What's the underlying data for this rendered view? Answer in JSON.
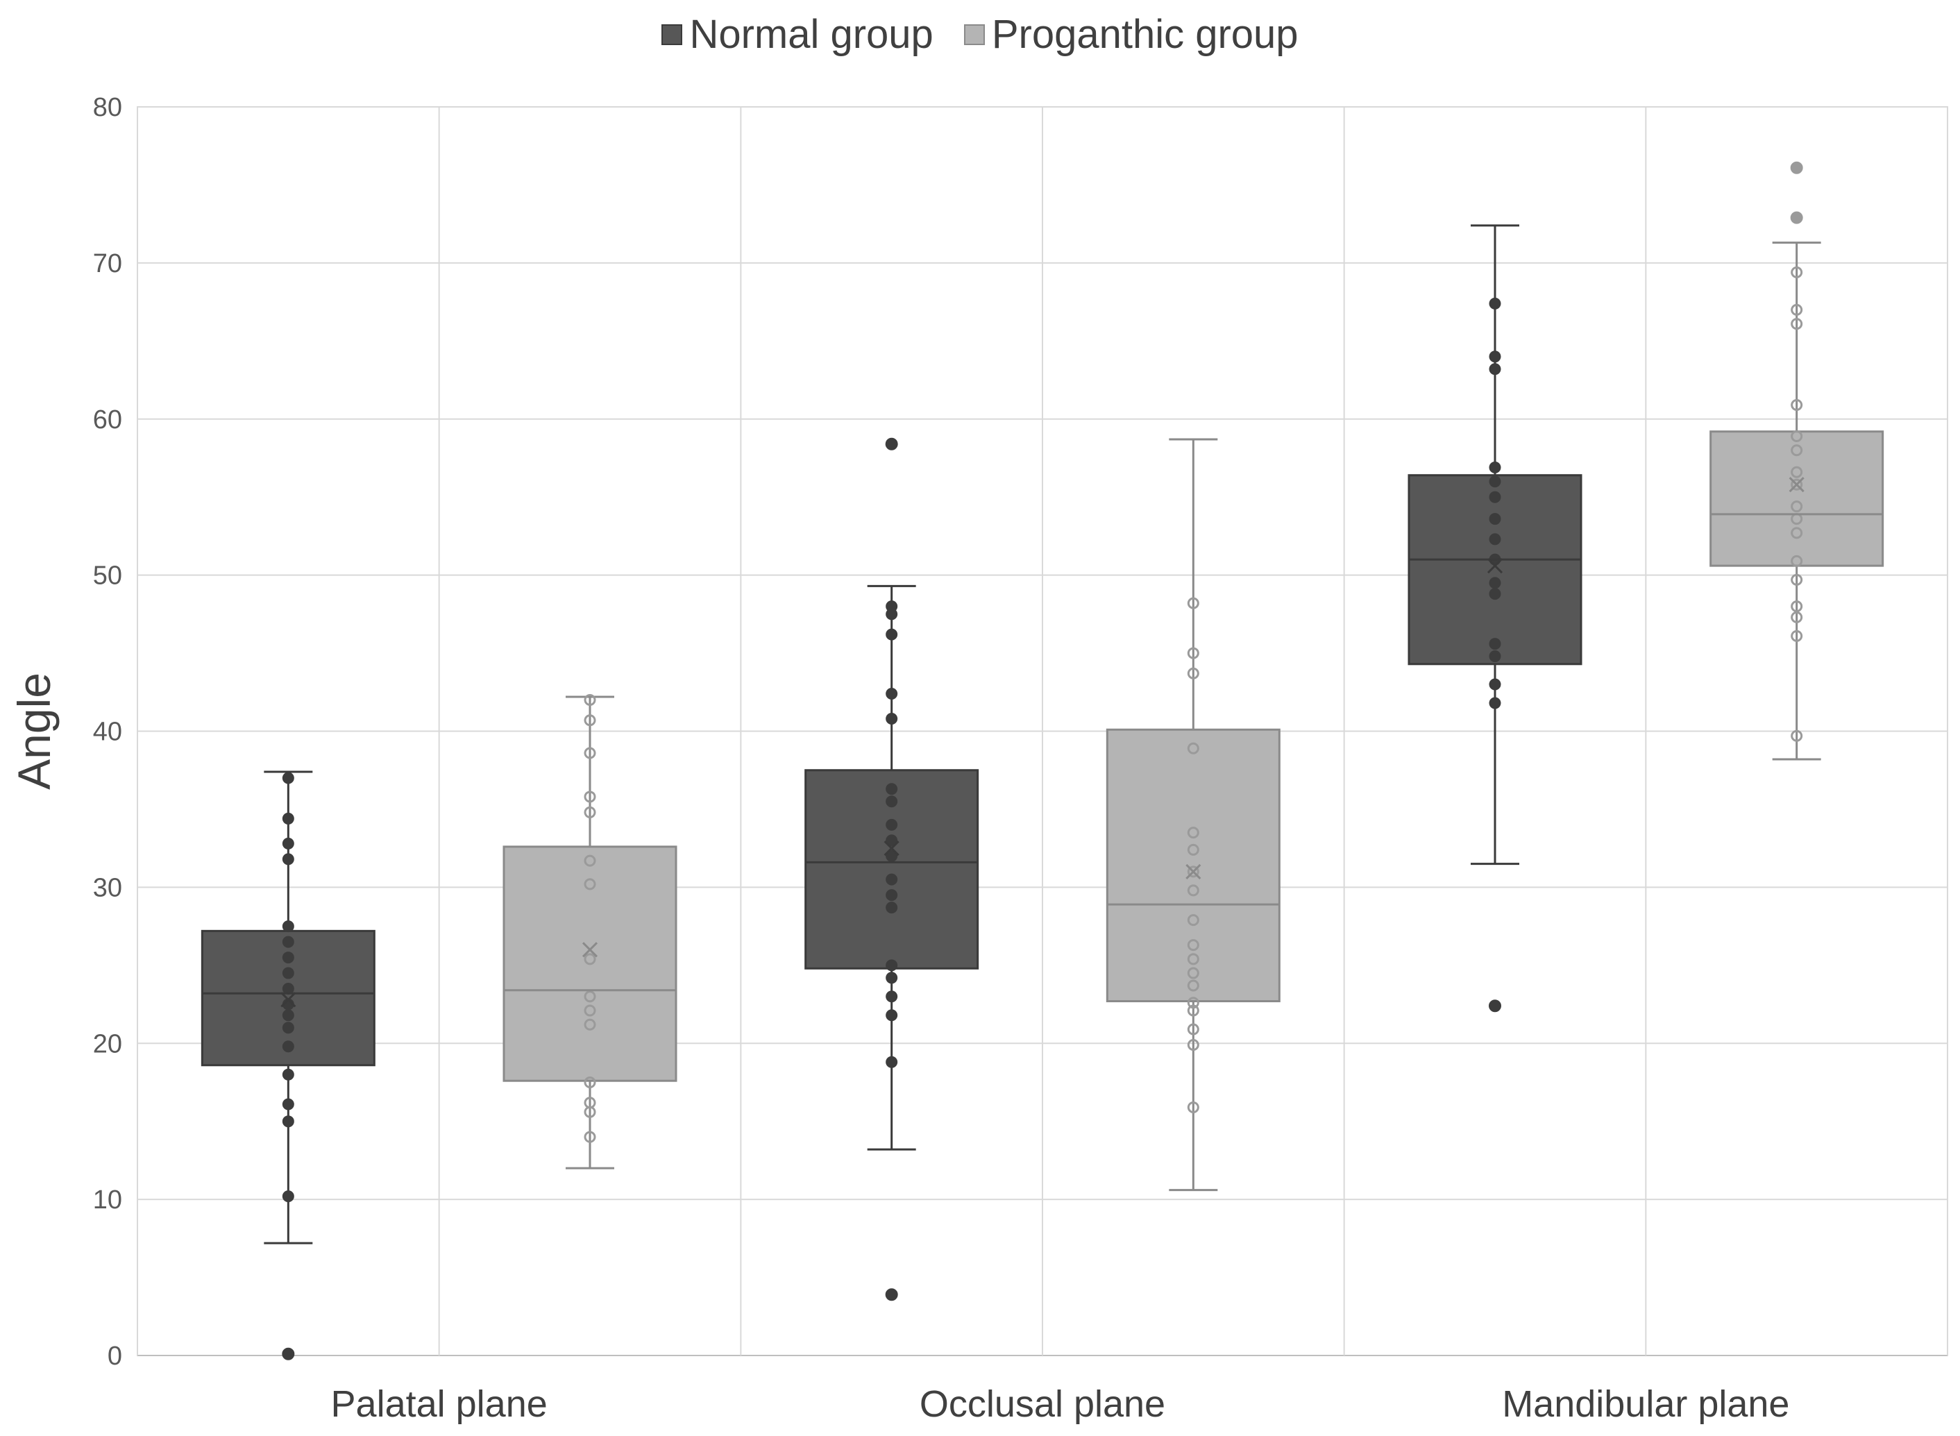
{
  "chart_data": {
    "type": "box",
    "title": "",
    "xlabel": "",
    "ylabel": "Angle",
    "ylim": [
      0,
      80
    ],
    "yticks": [
      0,
      10,
      20,
      30,
      40,
      50,
      60,
      70,
      80
    ],
    "grid": true,
    "legend_position": "top-center",
    "categories": [
      "Palatal plane",
      "Occlusal plane",
      "Mandibular plane"
    ],
    "series": [
      {
        "name": "Normal group",
        "color": "#575757",
        "edge": "#3a3a3a",
        "point_color": "#3c3c3c",
        "boxes": [
          {
            "whisker_low": 7.2,
            "q1": 18.6,
            "median": 23.2,
            "q3": 27.2,
            "whisker_high": 37.4,
            "mean": 22.8,
            "outliers": [
              0.1
            ],
            "points": [
              37.0,
              34.4,
              32.8,
              31.8,
              27.5,
              26.5,
              25.5,
              24.5,
              23.5,
              22.5,
              21.8,
              21.0,
              19.8,
              18.0,
              16.1,
              15.0,
              10.2,
              0.1
            ]
          },
          {
            "whisker_low": 13.2,
            "q1": 24.8,
            "median": 31.6,
            "q3": 37.5,
            "whisker_high": 49.3,
            "mean": 32.5,
            "outliers": [
              58.4,
              3.9
            ],
            "points": [
              48.0,
              47.5,
              46.2,
              42.4,
              40.8,
              36.3,
              35.5,
              34.0,
              33.0,
              32.0,
              30.5,
              29.5,
              28.7,
              25.0,
              24.2,
              23.0,
              21.8,
              18.8
            ]
          },
          {
            "whisker_low": 31.5,
            "q1": 44.3,
            "median": 51.0,
            "q3": 56.4,
            "whisker_high": 72.4,
            "mean": 50.6,
            "outliers": [
              22.4
            ],
            "points": [
              67.4,
              64.0,
              63.2,
              56.9,
              56.0,
              55.0,
              53.6,
              52.3,
              51.0,
              49.5,
              48.8,
              45.6,
              44.8,
              43.0,
              41.8
            ]
          }
        ]
      },
      {
        "name": "Proganthic group",
        "color": "#b4b4b4",
        "edge": "#8a8a8a",
        "point_color": "#9a9a9a",
        "boxes": [
          {
            "whisker_low": 12.0,
            "q1": 17.6,
            "median": 23.4,
            "q3": 32.6,
            "whisker_high": 42.2,
            "mean": 26.0,
            "outliers": [],
            "points": [
              42.0,
              40.7,
              38.6,
              35.8,
              34.8,
              31.7,
              30.2,
              25.4,
              23.0,
              22.1,
              21.2,
              17.5,
              16.2,
              15.6,
              14.0
            ]
          },
          {
            "whisker_low": 10.6,
            "q1": 22.7,
            "median": 28.9,
            "q3": 40.1,
            "whisker_high": 58.7,
            "mean": 31.0,
            "outliers": [],
            "points": [
              48.2,
              45.0,
              43.7,
              38.9,
              33.5,
              32.4,
              31.0,
              29.8,
              27.9,
              26.3,
              25.4,
              24.5,
              23.7,
              22.6,
              22.1,
              20.9,
              19.9,
              15.9
            ]
          },
          {
            "whisker_low": 38.2,
            "q1": 50.6,
            "median": 53.9,
            "q3": 59.2,
            "whisker_high": 71.3,
            "mean": 55.8,
            "outliers": [
              76.1,
              72.9
            ],
            "points": [
              69.4,
              67.0,
              66.1,
              60.9,
              58.9,
              58.0,
              56.6,
              55.8,
              54.4,
              53.6,
              52.7,
              50.9,
              49.7,
              48.0,
              47.3,
              46.1,
              39.7
            ]
          }
        ]
      }
    ]
  }
}
